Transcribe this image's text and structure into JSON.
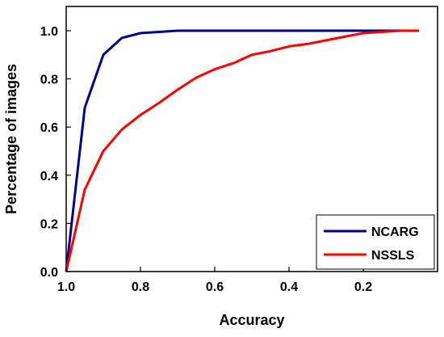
{
  "chart_data": {
    "type": "line",
    "title": "",
    "xlabel": "Accuracy",
    "ylabel": "Percentage of images",
    "xlim": [
      1.0,
      0.0
    ],
    "ylim": [
      0.0,
      1.1
    ],
    "x_reversed": true,
    "xticks": [
      "1.0",
      "0.8",
      "0.6",
      "0.4",
      "0.2"
    ],
    "xtick_values": [
      1.0,
      0.8,
      0.6,
      0.4,
      0.2
    ],
    "yticks": [
      "0.0",
      "0.2",
      "0.4",
      "0.6",
      "0.8",
      "1.0"
    ],
    "ytick_values": [
      0.0,
      0.2,
      0.4,
      0.6,
      0.8,
      1.0
    ],
    "grid": false,
    "legend_position": "bottom-right",
    "series": [
      {
        "name": "NCARG",
        "color": "#00008b",
        "x": [
          1.0,
          0.95,
          0.9,
          0.85,
          0.8,
          0.75,
          0.7,
          0.6,
          0.5,
          0.4,
          0.3,
          0.2,
          0.1,
          0.05
        ],
        "y": [
          0.0,
          0.68,
          0.9,
          0.97,
          0.99,
          0.995,
          1.0,
          1.0,
          1.0,
          1.0,
          1.0,
          1.0,
          1.0,
          1.0
        ]
      },
      {
        "name": "NSSLS",
        "color": "#ff0000",
        "x": [
          1.0,
          0.95,
          0.9,
          0.85,
          0.8,
          0.75,
          0.7,
          0.65,
          0.6,
          0.55,
          0.5,
          0.45,
          0.4,
          0.35,
          0.3,
          0.25,
          0.2,
          0.15,
          0.1,
          0.05
        ],
        "y": [
          0.0,
          0.34,
          0.5,
          0.59,
          0.65,
          0.7,
          0.755,
          0.805,
          0.84,
          0.865,
          0.9,
          0.915,
          0.935,
          0.945,
          0.96,
          0.975,
          0.99,
          0.995,
          1.0,
          1.0
        ]
      }
    ]
  }
}
